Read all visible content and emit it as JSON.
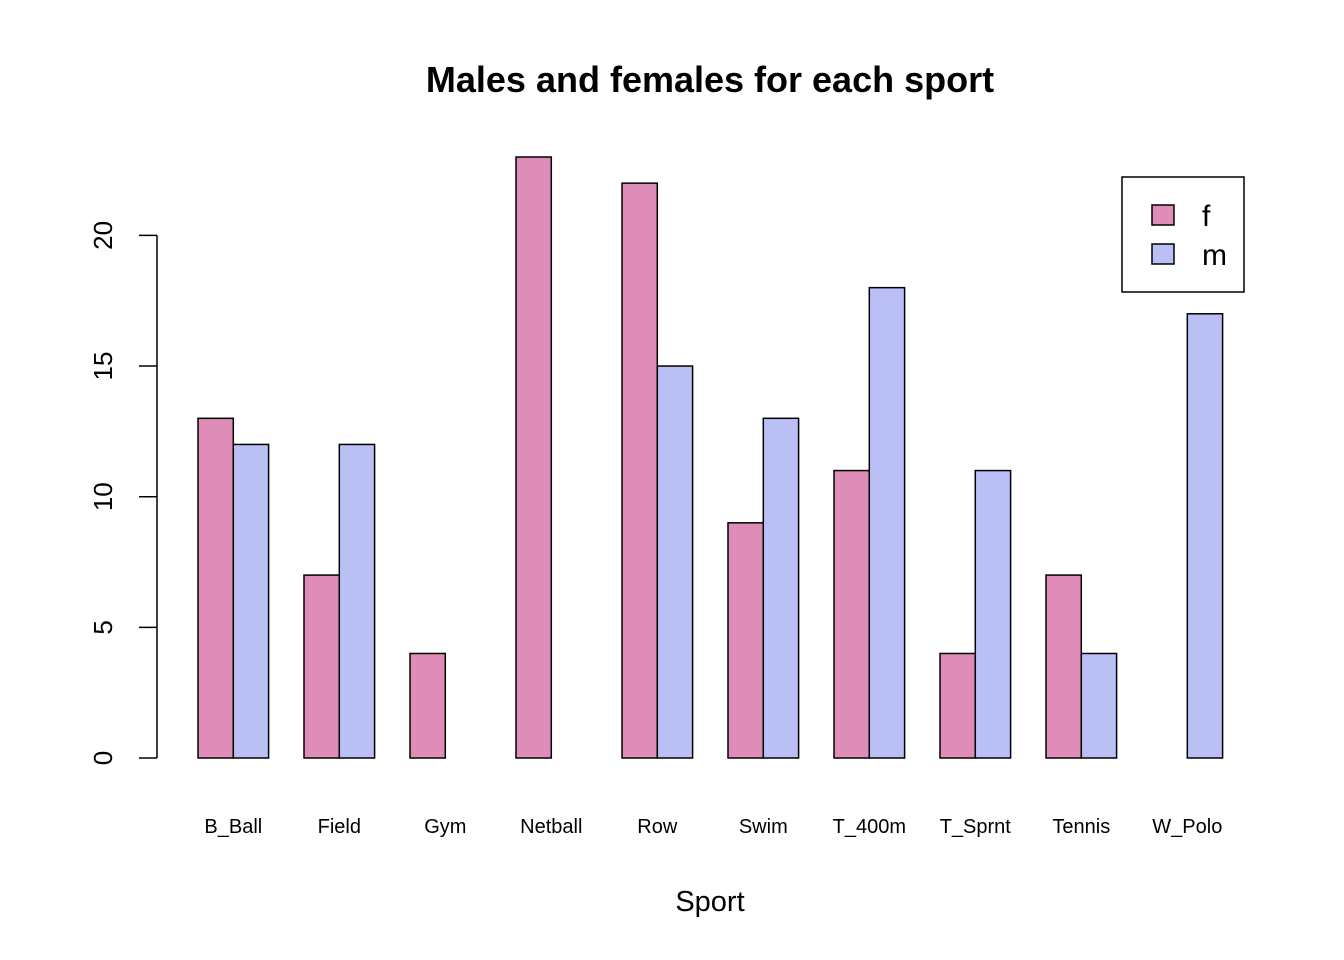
{
  "chart_data": {
    "type": "bar",
    "title": "Males and females for each sport",
    "xlabel": "Sport",
    "ylabel": "",
    "categories": [
      "B_Ball",
      "Field",
      "Gym",
      "Netball",
      "Row",
      "Swim",
      "T_400m",
      "T_Sprnt",
      "Tennis",
      "W_Polo"
    ],
    "series": [
      {
        "name": "f",
        "color": "#DE8CB8",
        "values": [
          13,
          7,
          4,
          23,
          22,
          9,
          11,
          4,
          7,
          0
        ]
      },
      {
        "name": "m",
        "color": "#BABFF5",
        "values": [
          12,
          12,
          0,
          0,
          15,
          13,
          18,
          11,
          4,
          17
        ]
      }
    ],
    "ylim": [
      0,
      23
    ],
    "yticks": [
      "0",
      "5",
      "10",
      "15",
      "20"
    ],
    "grid": false,
    "legend_position": "top-right"
  }
}
